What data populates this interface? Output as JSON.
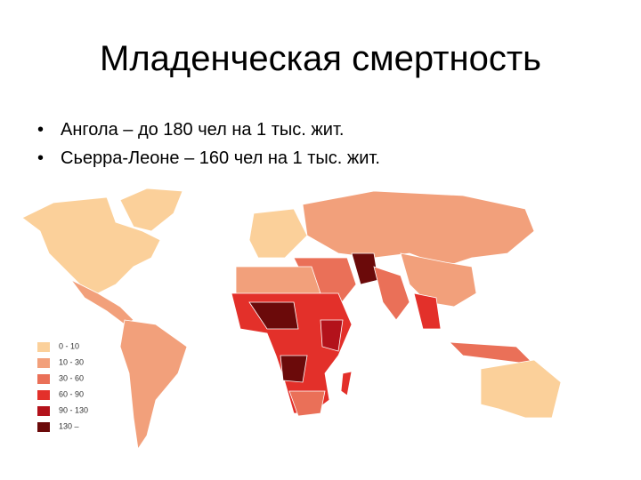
{
  "title": "Младенческая смертность",
  "bullets": [
    "Ангола – до 180 чел на 1 тыс. жит.",
    "Сьерра-Леоне – 160 чел на 1 тыс. жит."
  ],
  "legend": [
    {
      "label": "0 - 10",
      "color": "#fbd09a"
    },
    {
      "label": "10 - 30",
      "color": "#f2a07b"
    },
    {
      "label": "30 - 60",
      "color": "#ea7058"
    },
    {
      "label": "60 - 90",
      "color": "#e3302a"
    },
    {
      "label": "90 - 130",
      "color": "#b3121b"
    },
    {
      "label": "130 –",
      "color": "#6b0a0a"
    }
  ]
}
